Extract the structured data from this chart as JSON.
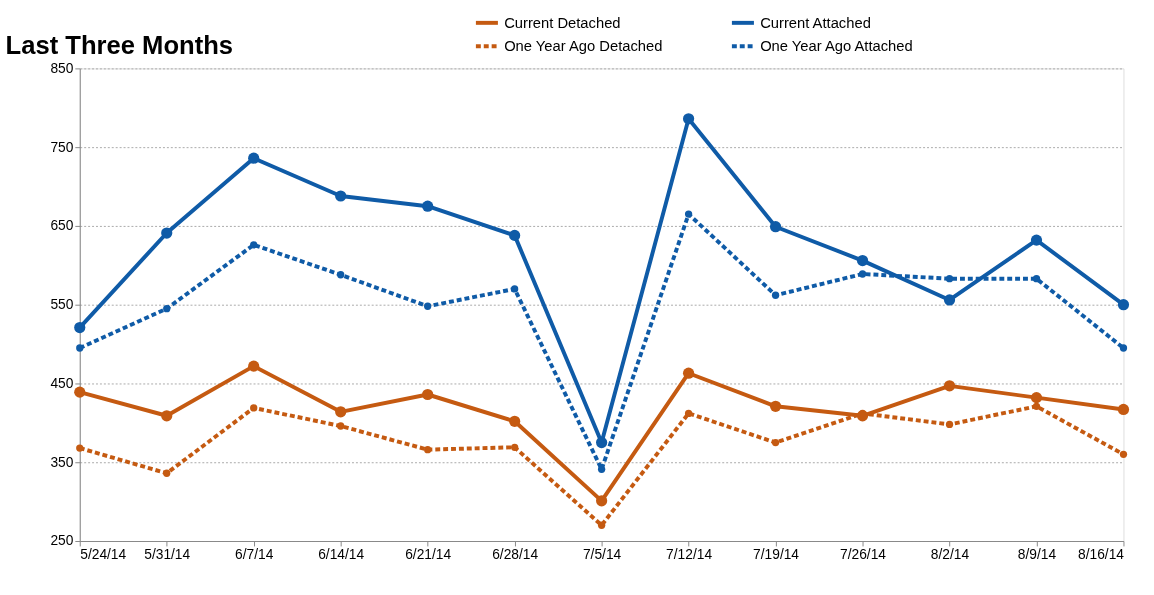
{
  "chart_data": {
    "type": "line",
    "title": "Last Three Months",
    "categories": [
      "5/24/14",
      "5/31/14",
      "6/7/14",
      "6/14/14",
      "6/21/14",
      "6/28/14",
      "7/5/14",
      "7/12/14",
      "7/19/14",
      "7/26/14",
      "8/2/14",
      "8/9/14",
      "8/16/14"
    ],
    "series": [
      {
        "name": "Current Detached",
        "color": "#c55a11",
        "line_style": "solid",
        "values": [
          439,
          409,
          472,
          414,
          436,
          402,
          301,
          463,
          421,
          409,
          447,
          432,
          417
        ]
      },
      {
        "name": "Current Attached",
        "color": "#0f5ba7",
        "line_style": "solid",
        "values": [
          521,
          641,
          736,
          688,
          675,
          638,
          375,
          786,
          649,
          606,
          556,
          632,
          550
        ]
      },
      {
        "name": "One Year Ago Detached",
        "color": "#c55a11",
        "line_style": "dashed",
        "values": [
          368,
          336,
          419,
          396,
          366,
          369,
          270,
          412,
          375,
          412,
          398,
          421,
          360
        ]
      },
      {
        "name": "One Year Ago Attached",
        "color": "#0f5ba7",
        "line_style": "dashed",
        "values": [
          495,
          545,
          626,
          588,
          548,
          570,
          341,
          665,
          562,
          589,
          583,
          583,
          495
        ]
      }
    ],
    "ylim": [
      250,
      850
    ],
    "yticks": [
      250,
      350,
      450,
      550,
      650,
      750,
      850
    ],
    "grid": "y",
    "legend": "top right",
    "marker": "circle"
  }
}
